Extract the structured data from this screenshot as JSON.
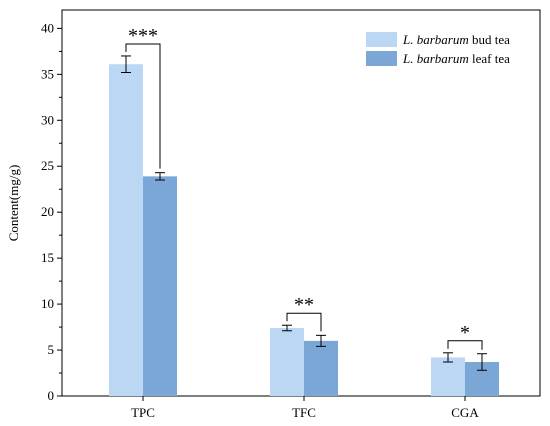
{
  "chart_data": {
    "type": "bar",
    "ylabel": "Content(mg/g)",
    "xlabel": "",
    "categories": [
      "TPC",
      "TFC",
      "CGA"
    ],
    "ylim": [
      0,
      42
    ],
    "yticks": [
      0,
      5,
      10,
      15,
      20,
      25,
      30,
      35,
      40
    ],
    "grid": false,
    "legend_position": "top-right",
    "series": [
      {
        "name_italic": "L. barbarum",
        "name_rest": " bud tea",
        "color": "#bcd7f3",
        "values": [
          36.1,
          7.4,
          4.2
        ],
        "errors": [
          0.9,
          0.3,
          0.5
        ]
      },
      {
        "name_italic": "L. barbarum",
        "name_rest": " leaf tea",
        "color": "#7ba7d7",
        "values": [
          23.9,
          6.0,
          3.7
        ],
        "errors": [
          0.4,
          0.6,
          0.9
        ]
      }
    ],
    "significance": [
      {
        "category": "TPC",
        "label": "***"
      },
      {
        "category": "TFC",
        "label": "**"
      },
      {
        "category": "CGA",
        "label": "*"
      }
    ]
  }
}
